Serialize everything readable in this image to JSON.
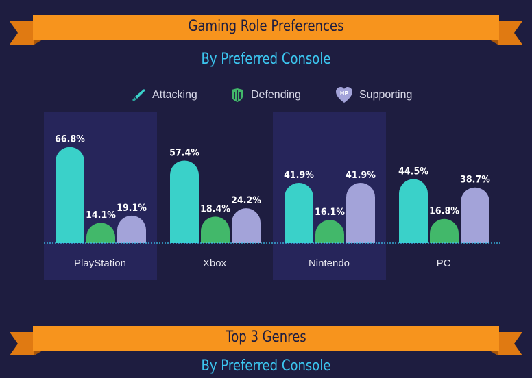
{
  "header1": {
    "title": "Gaming Role Preferences",
    "subtitle": "By Preferred Console"
  },
  "header2": {
    "title": "Top 3 Genres",
    "subtitle": "By Preferred Console"
  },
  "legend": [
    {
      "label": "Attacking",
      "icon": "sword-icon",
      "color": "#3ad1c9"
    },
    {
      "label": "Defending",
      "icon": "shield-icon",
      "color": "#42b86a"
    },
    {
      "label": "Supporting",
      "icon": "hp-heart-icon",
      "color": "#a3a3d9"
    }
  ],
  "colors": {
    "background": "#1e1d40",
    "panel": "#26255a",
    "ribbon": "#f7941d",
    "subtitle": "#3cc6f0"
  },
  "chart_data": {
    "type": "bar",
    "categories": [
      "PlayStation",
      "Xbox",
      "Nintendo",
      "PC"
    ],
    "series": [
      {
        "name": "Attacking",
        "values": [
          66.8,
          57.4,
          41.9,
          44.5
        ],
        "labels": [
          "66.8%",
          "57.4%",
          "41.9%",
          "44.5%"
        ],
        "color": "#3ad1c9"
      },
      {
        "name": "Defending",
        "values": [
          14.1,
          18.4,
          16.1,
          16.8
        ],
        "labels": [
          "14.1%",
          "18.4%",
          "16.1%",
          "16.8%"
        ],
        "color": "#42b86a"
      },
      {
        "name": "Supporting",
        "values": [
          19.1,
          24.2,
          41.9,
          38.7
        ],
        "labels": [
          "19.1%",
          "24.2%",
          "41.9%",
          "38.7%"
        ],
        "color": "#a3a3d9"
      }
    ],
    "highlighted_categories": [
      "PlayStation",
      "Nintendo"
    ],
    "ylim": [
      0,
      100
    ],
    "legend": "top-center",
    "grid": false
  }
}
